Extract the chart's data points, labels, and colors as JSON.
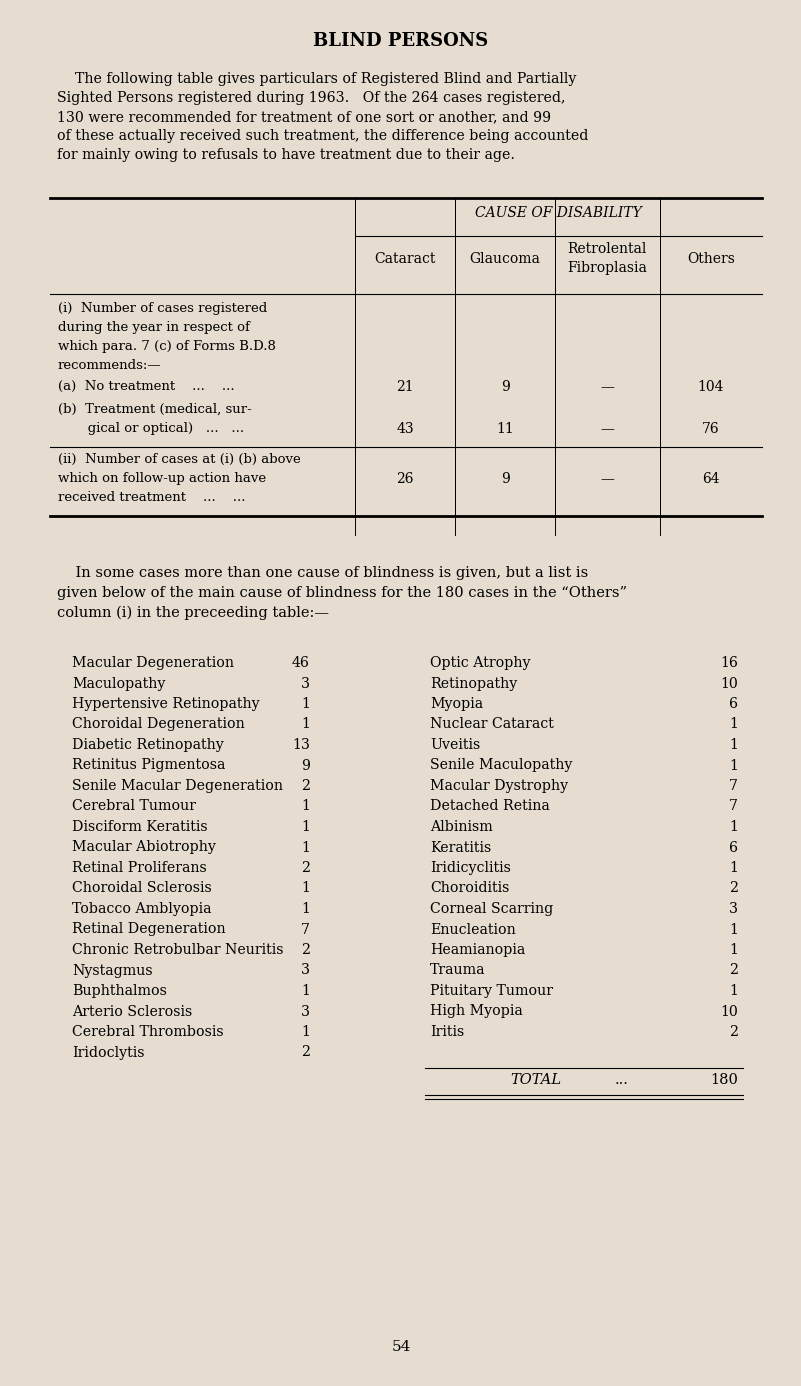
{
  "bg_color": "#e6ddd0",
  "title": "BLIND PERSONS",
  "intro_lines": [
    "    The following table gives particulars of Registered Blind and Partially",
    "Sighted Persons registered during 1963.   Of the 264 cases registered,",
    "130 were recommended for treatment of one sort or another, and 99",
    "of these actually received such treatment, the difference being accounted",
    "for mainly owing to refusals to have treatment due to their age."
  ],
  "cause_header": "CAUSE OF DISABILITY",
  "col_headers": [
    "Cataract",
    "Glaucoma",
    "Retrolental\nFibroplasia",
    "Others"
  ],
  "row_i_lines": [
    "(i)  Number of cases registered",
    "during the year in respect of",
    "which para. 7 (c) of Forms B.D.8",
    "recommends:—"
  ],
  "row_a_label": "(a)  No treatment    ...    ...",
  "row_a_vals": [
    "21",
    "9",
    "—",
    "104"
  ],
  "row_b_lines": [
    "(b)  Treatment (medical, sur-",
    "       gical or optical)   ...   ..."
  ],
  "row_b_vals": [
    "43",
    "11",
    "—",
    "76"
  ],
  "row_ii_lines": [
    "(ii)  Number of cases at (i) (b) above",
    "which on follow-up action have",
    "received treatment    ...    ..."
  ],
  "row_ii_vals": [
    "26",
    "9",
    "—",
    "64"
  ],
  "para2_lines": [
    "    In some cases more than one cause of blindness is given, but a list is",
    "given below of the main cause of blindness for the 180 cases in the “Others”",
    "column (i) in the preceeding table:—"
  ],
  "list_left": [
    [
      "Macular Degeneration",
      "46"
    ],
    [
      "Maculopathy",
      "3"
    ],
    [
      "Hypertensive Retinopathy",
      "1"
    ],
    [
      "Choroidal Degeneration",
      "1"
    ],
    [
      "Diabetic Retinopathy",
      "13"
    ],
    [
      "Retinitus Pigmentosa",
      "9"
    ],
    [
      "Senile Macular Degeneration",
      "2"
    ],
    [
      "Cerebral Tumour",
      "1"
    ],
    [
      "Disciform Keratitis",
      "1"
    ],
    [
      "Macular Abiotrophy",
      "1"
    ],
    [
      "Retinal Proliferans",
      "2"
    ],
    [
      "Choroidal Sclerosis",
      "1"
    ],
    [
      "Tobacco Amblyopia",
      "1"
    ],
    [
      "Retinal Degeneration",
      "7"
    ],
    [
      "Chronic Retrobulbar Neuritis",
      "2"
    ],
    [
      "Nystagmus",
      "3"
    ],
    [
      "Buphthalmos",
      "1"
    ],
    [
      "Arterio Sclerosis",
      "3"
    ],
    [
      "Cerebral Thrombosis",
      "1"
    ],
    [
      "Iridoclytis",
      "2"
    ]
  ],
  "list_right": [
    [
      "Optic Atrophy",
      "16"
    ],
    [
      "Retinopathy",
      "10"
    ],
    [
      "Myopia",
      "6"
    ],
    [
      "Nuclear Cataract",
      "1"
    ],
    [
      "Uveitis",
      "1"
    ],
    [
      "Senile Maculopathy",
      "1"
    ],
    [
      "Macular Dystrophy",
      "7"
    ],
    [
      "Detached Retina",
      "7"
    ],
    [
      "Albinism",
      "1"
    ],
    [
      "Keratitis",
      "6"
    ],
    [
      "Iridicyclitis",
      "1"
    ],
    [
      "Choroiditis",
      "2"
    ],
    [
      "Corneal Scarring",
      "3"
    ],
    [
      "Enucleation",
      "1"
    ],
    [
      "Heamianopia",
      "1"
    ],
    [
      "Trauma",
      "2"
    ],
    [
      "Pituitary Tumour",
      "1"
    ],
    [
      "High Myopia",
      "10"
    ],
    [
      "Iritis",
      "2"
    ],
    [
      "",
      ""
    ]
  ],
  "total_label": "TOTAL",
  "total_dots": "...",
  "total_val": "180",
  "page_num": "54",
  "fig_w": 8.01,
  "fig_h": 13.86,
  "dpi": 100
}
